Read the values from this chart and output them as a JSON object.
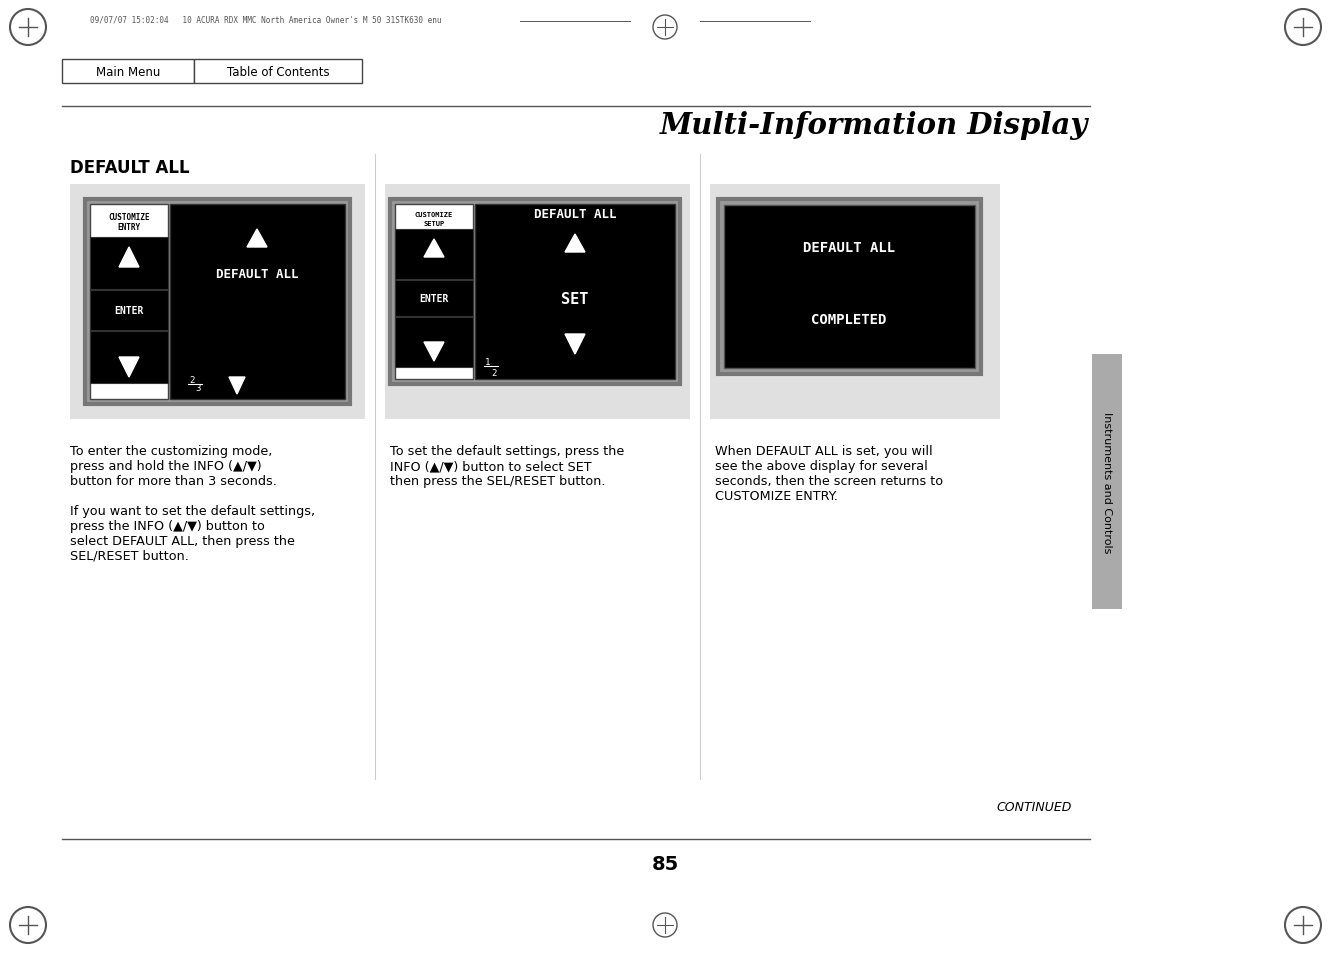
{
  "page_bg": "#ffffff",
  "title": "Multi-Information Display",
  "header_text": "09/07/07 15:02:04   10 ACURA RDX MMC North America Owner's M 50 31STK630 enu",
  "main_menu_text": "Main Menu",
  "toc_text": "Table of Contents",
  "section_label": "DEFAULT ALL",
  "sidebar_text": "Instruments and Controls",
  "sidebar_bg": "#aaaaaa",
  "page_number": "85",
  "continued_text": "CONTINUED",
  "panel_bg": "#e0e0e0",
  "screen_gray": "#888888",
  "caption1_line1": "To enter the customizing mode,",
  "caption1_line2": "press and hold the INFO (▲/▼)",
  "caption1_line3": "button for more than 3 seconds.",
  "caption1_line4": "",
  "caption1_line5": "If you want to set the default settings,",
  "caption1_line6": "press the INFO (▲/▼) button to",
  "caption1_line7": "select DEFAULT ALL, then press the",
  "caption1_line8": "SEL/RESET button.",
  "caption2_line1": "To set the default settings, press the",
  "caption2_line2": "INFO (▲/▼) button to select SET",
  "caption2_line3": "then press the SEL/RESET button.",
  "caption3_line1": "When DEFAULT ALL is set, you will",
  "caption3_line2": "see the above display for several",
  "caption3_line3": "seconds, then the screen returns to",
  "caption3_line4": "CUSTOMIZE ENTRY."
}
